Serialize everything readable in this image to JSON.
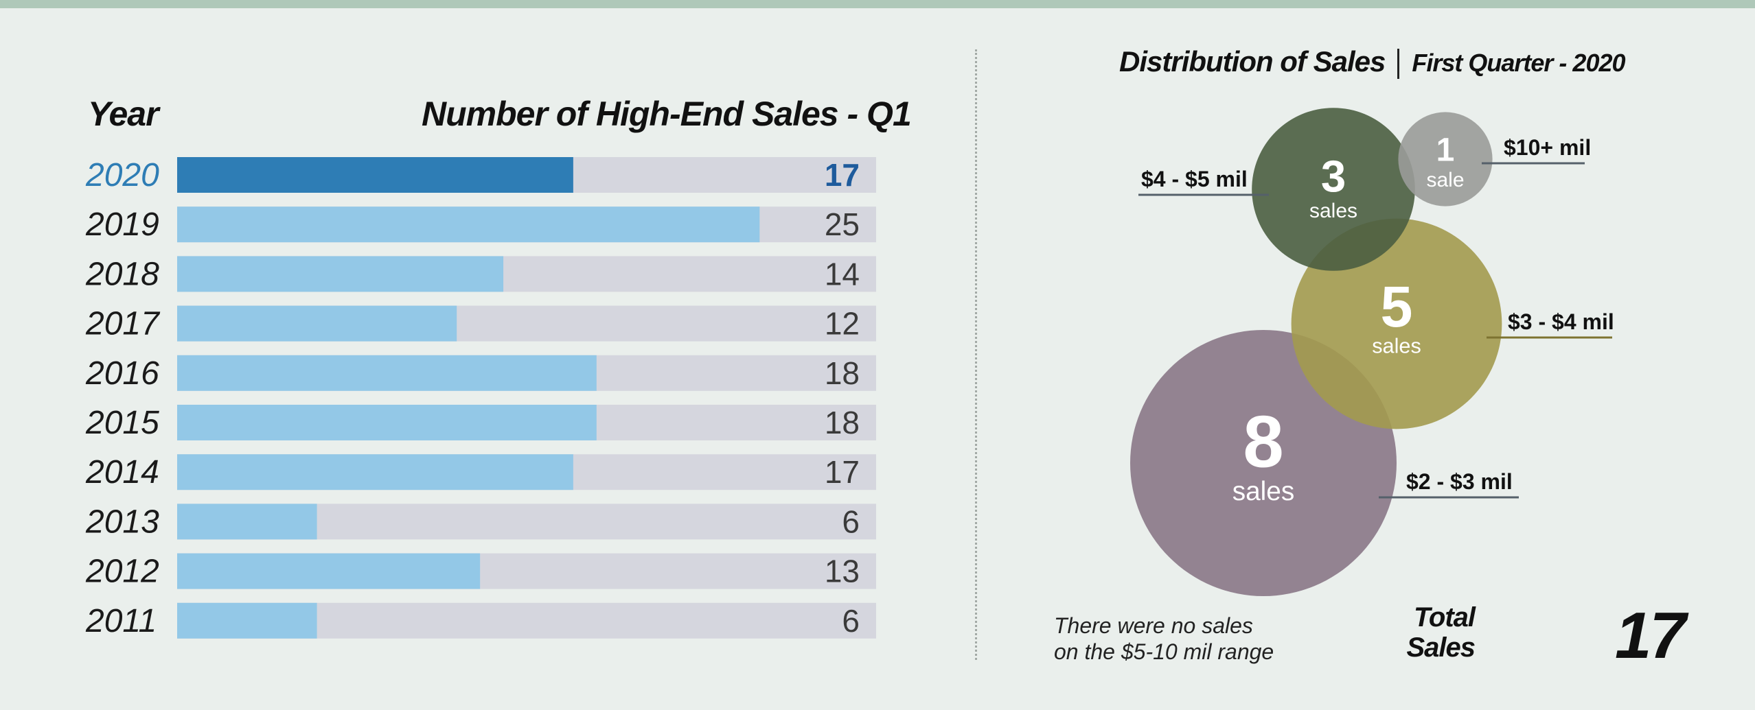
{
  "bar_panel": {
    "year_header": "Year",
    "sales_header": "Number of High-End Sales - Q1"
  },
  "bubble_panel": {
    "title": "Distribution of Sales",
    "subtitle": "First Quarter - 2020",
    "note_line1": "There were no sales",
    "note_line2": "on the $5-10 mil range",
    "total_label_line1": "Total",
    "total_label_line2": "Sales",
    "total_value": "17"
  },
  "colors": {
    "highlight_bar": "#2e7db5",
    "bar": "#93c8e7",
    "track": "#d5d6de",
    "highlight_text": "#1e5b9c",
    "bubble_4_5": "#4b5e41",
    "bubble_10plus": "#9a9b99",
    "bubble_3_4": "#a39a4f",
    "bubble_2_3": "#8a7787"
  },
  "chart_data": [
    {
      "type": "bar",
      "orientation": "horizontal",
      "title": "Number of High-End Sales - Q1",
      "ylabel": "Year",
      "categories": [
        "2020",
        "2019",
        "2018",
        "2017",
        "2016",
        "2015",
        "2014",
        "2013",
        "2012",
        "2011"
      ],
      "values": [
        17,
        25,
        14,
        12,
        18,
        18,
        17,
        6,
        13,
        6
      ],
      "highlight": "2020",
      "xlim": [
        0,
        30
      ]
    },
    {
      "type": "bubble",
      "title": "Distribution of Sales",
      "subtitle": "First Quarter - 2020",
      "series": [
        {
          "range": "$4 - $5 mil",
          "count": 3,
          "unit": "sales",
          "color": "#4b5e41"
        },
        {
          "range": "$10+ mil",
          "count": 1,
          "unit": "sale",
          "color": "#9a9b99"
        },
        {
          "range": "$3 - $4 mil",
          "count": 5,
          "unit": "sales",
          "color": "#a39a4f"
        },
        {
          "range": "$2 - $3 mil",
          "count": 8,
          "unit": "sales",
          "color": "#8a7787"
        }
      ],
      "total": 17
    }
  ]
}
